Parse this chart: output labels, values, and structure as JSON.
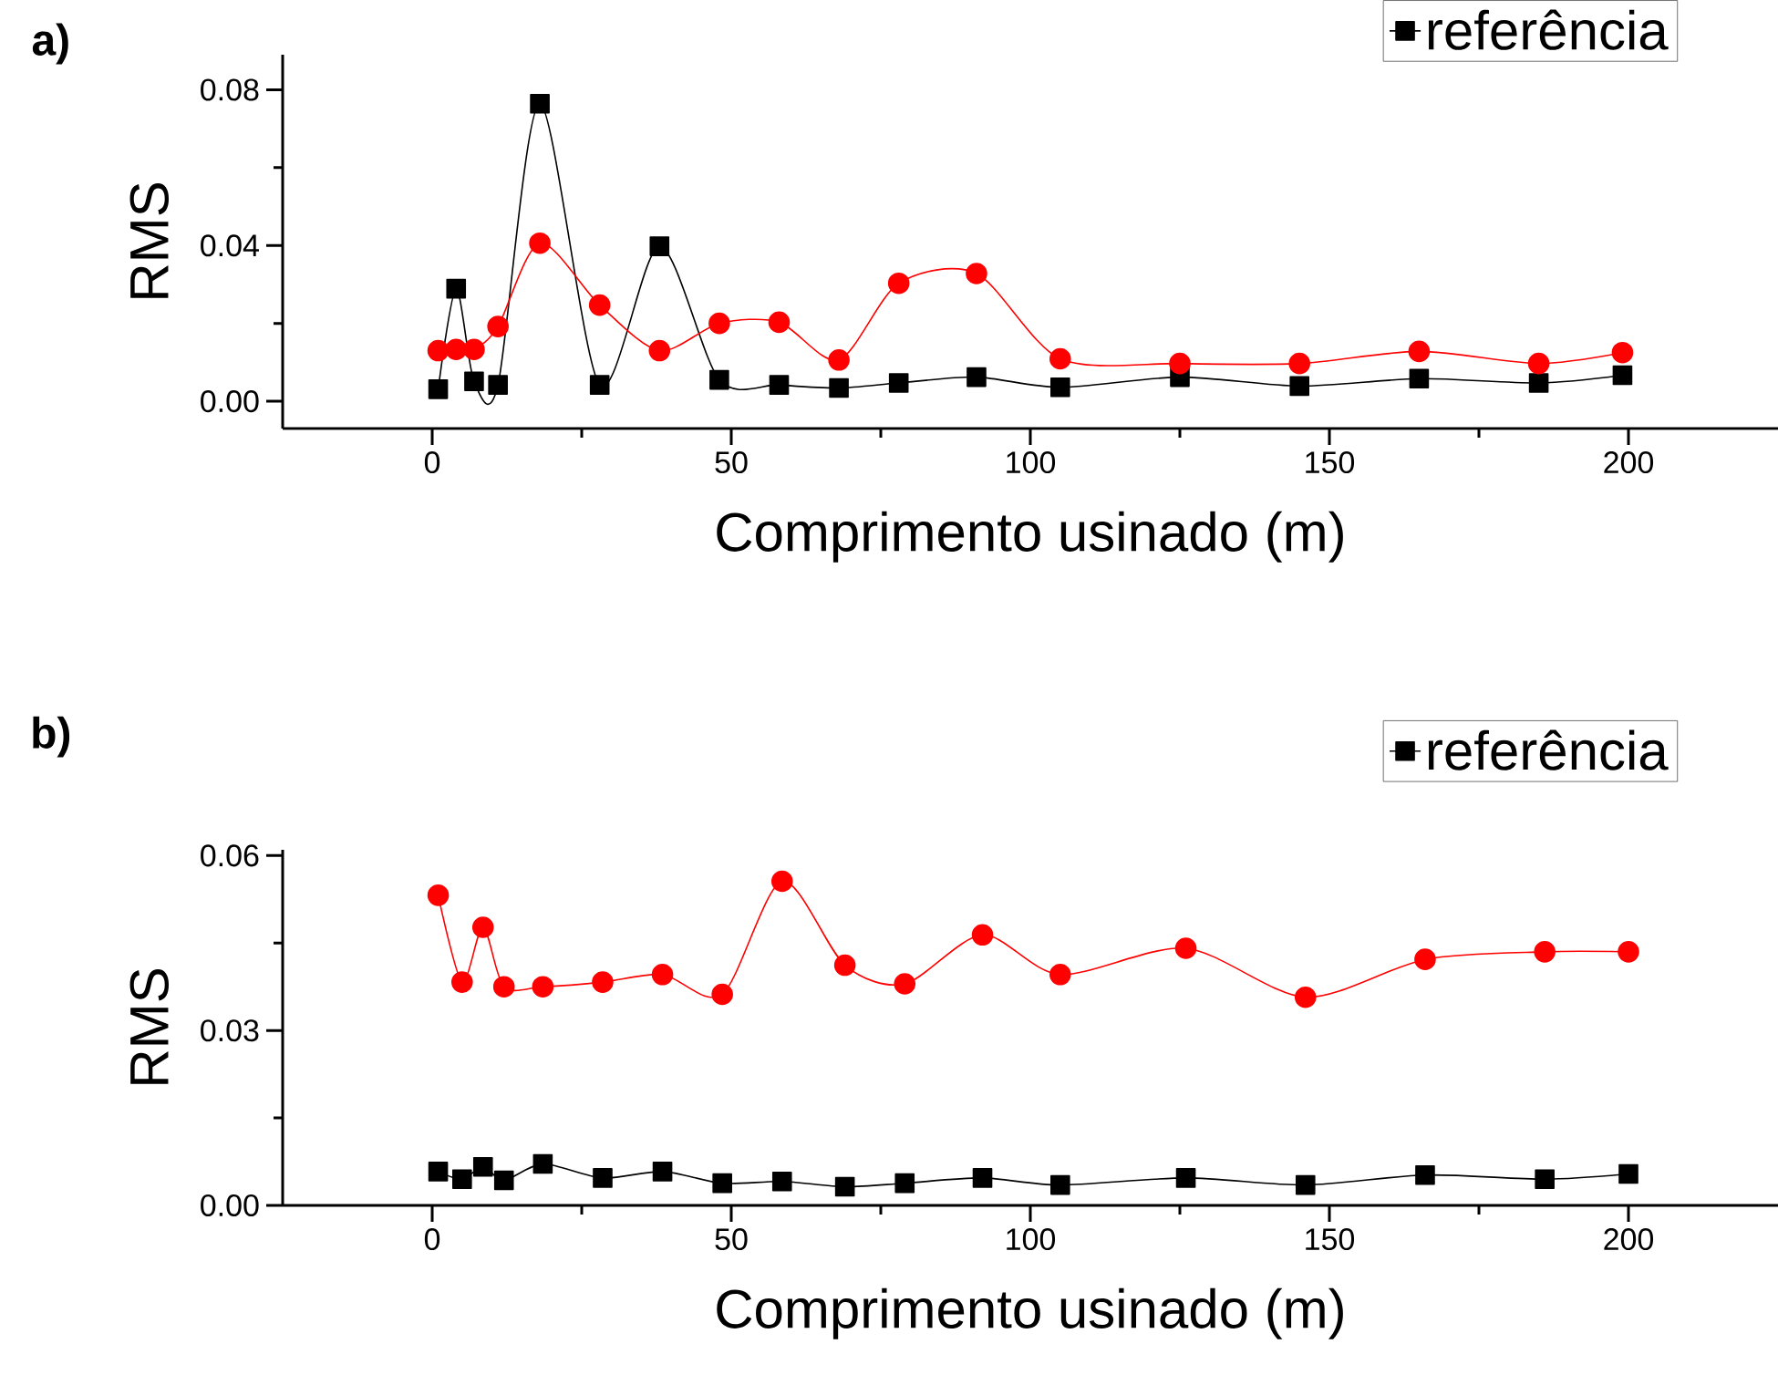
{
  "chart_data": [
    {
      "type": "line",
      "title": "a)",
      "xlabel": "Comprimento usinado (m)",
      "ylabel": "RMS",
      "legend": "top right",
      "xlim": [
        -25,
        225
      ],
      "ylim": [
        -0.007,
        0.089
      ],
      "xticks": [
        0,
        {
          "value": 25,
          "label": null
        },
        50,
        {
          "value": 75,
          "label": null
        },
        100,
        {
          "value": 125,
          "label": null
        },
        150,
        {
          "value": 175,
          "label": null
        },
        200
      ],
      "yticks": [
        {
          "value": 0,
          "label": "0.00"
        },
        {
          "value": 0.02,
          "label": null
        },
        {
          "value": 0.04,
          "label": "0.04"
        },
        {
          "value": 0.06,
          "label": null
        },
        {
          "value": 0.08,
          "label": "0.08"
        }
      ],
      "series": [
        {
          "name": "referência",
          "color": "#000000",
          "marker": "square",
          "x": [
            1,
            4,
            7,
            11,
            18,
            28,
            38,
            48,
            58,
            68,
            78,
            91,
            105,
            125,
            145,
            165,
            185,
            199
          ],
          "values": [
            0.0031,
            0.0289,
            0.0051,
            0.0042,
            0.0764,
            0.0042,
            0.0398,
            0.0055,
            0.0042,
            0.0034,
            0.0047,
            0.0062,
            0.0036,
            0.0062,
            0.0039,
            0.0058,
            0.0047,
            0.0067
          ]
        },
        {
          "color": "#ff0000",
          "marker": "circle",
          "x": [
            1,
            4,
            7,
            11,
            18,
            28,
            38,
            48,
            58,
            68,
            78,
            91,
            105,
            125,
            145,
            165,
            185,
            199
          ],
          "values": [
            0.013,
            0.0133,
            0.0133,
            0.0192,
            0.0406,
            0.0247,
            0.013,
            0.02,
            0.0203,
            0.0106,
            0.0303,
            0.0328,
            0.0109,
            0.0097,
            0.0097,
            0.0128,
            0.0097,
            0.0125
          ]
        }
      ]
    },
    {
      "type": "line",
      "title": "b)",
      "xlabel": "Comprimento usinado (m)",
      "ylabel": "RMS",
      "legend": "top right",
      "xlim": [
        -25,
        225
      ],
      "ylim": [
        0,
        0.061
      ],
      "xticks": [
        0,
        {
          "value": 25,
          "label": null
        },
        50,
        {
          "value": 75,
          "label": null
        },
        100,
        {
          "value": 125,
          "label": null
        },
        150,
        {
          "value": 175,
          "label": null
        },
        200
      ],
      "yticks": [
        {
          "value": 0,
          "label": "0.00"
        },
        {
          "value": 0.015,
          "label": null
        },
        {
          "value": 0.03,
          "label": "0.03"
        },
        {
          "value": 0.045,
          "label": null
        },
        {
          "value": 0.06,
          "label": "0.06"
        }
      ],
      "series": [
        {
          "name": "referência",
          "color": "#000000",
          "marker": "square",
          "x": [
            1,
            5,
            8.5,
            12,
            18.5,
            28.5,
            38.5,
            48.5,
            58.5,
            69,
            79,
            92,
            105,
            126,
            146,
            166,
            186,
            200
          ],
          "values": [
            0.0058,
            0.0045,
            0.0066,
            0.0043,
            0.0071,
            0.0047,
            0.0058,
            0.0038,
            0.0041,
            0.0032,
            0.0038,
            0.0047,
            0.0035,
            0.0047,
            0.0035,
            0.0052,
            0.0045,
            0.0054
          ]
        },
        {
          "color": "#ff0000",
          "marker": "circle",
          "x": [
            1,
            5,
            8.5,
            12,
            18.5,
            28.5,
            38.5,
            48.5,
            58.5,
            69,
            79,
            92,
            105,
            126,
            146,
            166,
            186,
            200
          ],
          "values": [
            0.0532,
            0.0383,
            0.0477,
            0.0375,
            0.0375,
            0.0383,
            0.0396,
            0.0362,
            0.0556,
            0.0412,
            0.038,
            0.0464,
            0.0396,
            0.0441,
            0.0357,
            0.0422,
            0.0435,
            0.0435
          ]
        }
      ]
    }
  ]
}
